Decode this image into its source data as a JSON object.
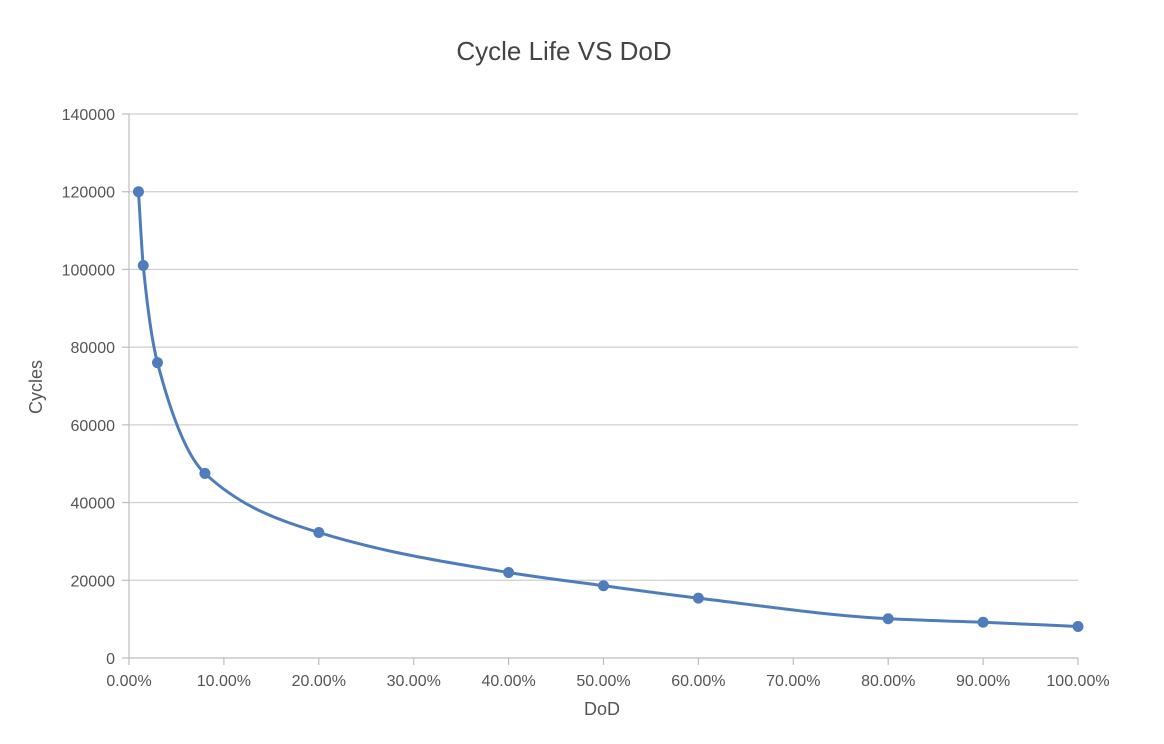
{
  "chart_data": {
    "type": "line",
    "title": "Cycle Life VS DoD",
    "xlabel": "DoD",
    "ylabel": "Cycles",
    "xlim": [
      0,
      1
    ],
    "ylim": [
      0,
      140000
    ],
    "x_ticks": [
      0,
      0.1,
      0.2,
      0.3,
      0.4,
      0.5,
      0.6,
      0.7,
      0.8,
      0.9,
      1.0
    ],
    "x_tick_labels": [
      "0.00%",
      "10.00%",
      "20.00%",
      "30.00%",
      "40.00%",
      "50.00%",
      "60.00%",
      "70.00%",
      "80.00%",
      "90.00%",
      "100.00%"
    ],
    "y_ticks": [
      0,
      20000,
      40000,
      60000,
      80000,
      100000,
      120000,
      140000
    ],
    "y_tick_labels": [
      "0",
      "20000",
      "40000",
      "60000",
      "80000",
      "100000",
      "120000",
      "140000"
    ],
    "grid": true,
    "legend": "none",
    "series": [
      {
        "color": "#4f7dbc",
        "smooth": true,
        "markers": true,
        "x": [
          0.01,
          0.015,
          0.03,
          0.08,
          0.2,
          0.4,
          0.5,
          0.6,
          0.8,
          0.9,
          1.0
        ],
        "y": [
          120000,
          101000,
          76000,
          47500,
          32300,
          22000,
          18600,
          15400,
          10100,
          9200,
          8100
        ]
      }
    ]
  }
}
